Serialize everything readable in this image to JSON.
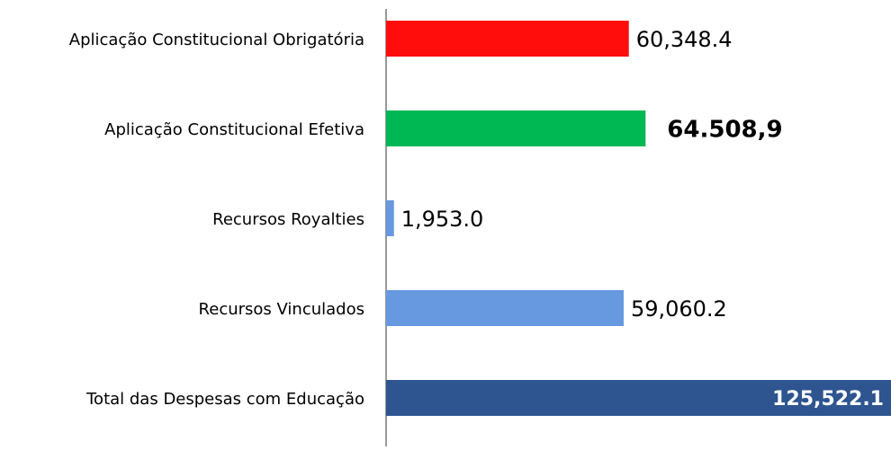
{
  "chart_data": {
    "type": "bar",
    "orientation": "horizontal",
    "categories": [
      "Aplicação Constitucional Obrigatória",
      "Aplicação Constitucional Efetiva",
      "Recursos Royalties",
      "Recursos Vinculados",
      "Total das Despesas com Educação"
    ],
    "values": [
      60348.4,
      64508.9,
      1953.0,
      59060.2,
      125522.1
    ],
    "value_labels": [
      "60,348.4",
      "64.508,9",
      "1,953.0",
      "59,060.2",
      "125,522.1"
    ],
    "colors": [
      "#ff0d0d",
      "#00b853",
      "#6699e0",
      "#6699e0",
      "#2e5590"
    ]
  }
}
